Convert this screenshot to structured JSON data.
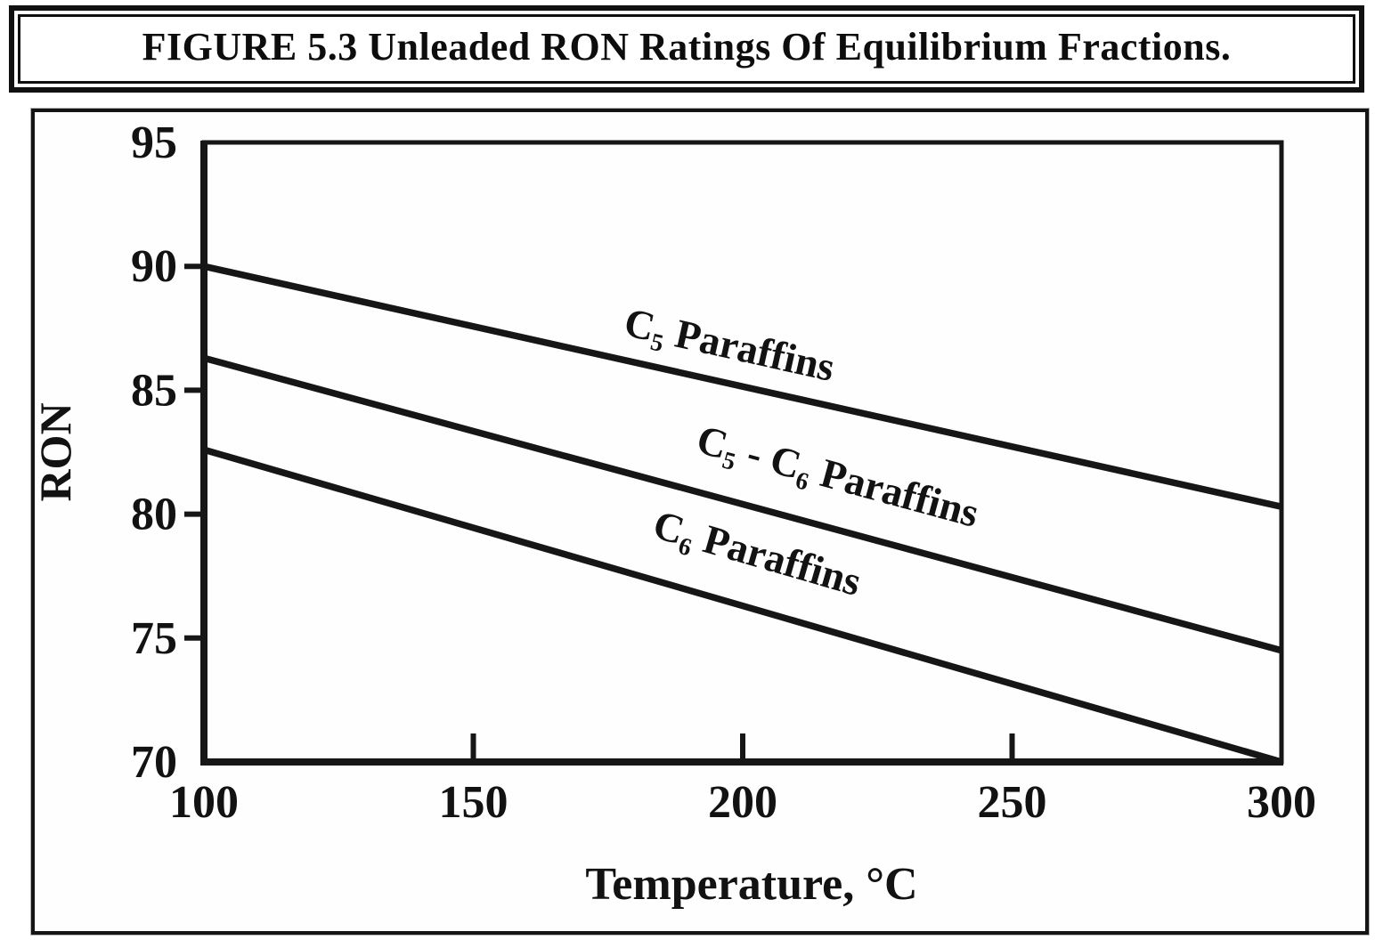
{
  "figure": {
    "title": "FIGURE 5.3 Unleaded RON Ratings Of Equilibrium Fractions."
  },
  "chart_data": {
    "type": "line",
    "title": "FIGURE 5.3 Unleaded RON Ratings Of Equilibrium Fractions.",
    "xlabel": "Temperature, °C",
    "ylabel": "RON",
    "xlim": [
      100,
      300
    ],
    "ylim": [
      70,
      95
    ],
    "x_ticks": [
      100,
      150,
      200,
      250,
      300
    ],
    "y_ticks": [
      70,
      75,
      80,
      85,
      90,
      95
    ],
    "grid": false,
    "legend": "inline-labels",
    "line_color": "#161616",
    "series": [
      {
        "name": "C₅ Paraffins",
        "x": [
          100,
          300
        ],
        "values": [
          90.0,
          80.3
        ],
        "label_anchor": {
          "x": 197,
          "y": 86.3
        }
      },
      {
        "name": "C₅ - C₆ Paraffins",
        "x": [
          100,
          300
        ],
        "values": [
          86.3,
          74.5
        ],
        "label_anchor": {
          "x": 217,
          "y": 81.0
        }
      },
      {
        "name": "C₆ Paraffins",
        "x": [
          100,
          300
        ],
        "values": [
          82.6,
          70.0
        ],
        "label_anchor": {
          "x": 202,
          "y": 77.9
        }
      }
    ]
  }
}
